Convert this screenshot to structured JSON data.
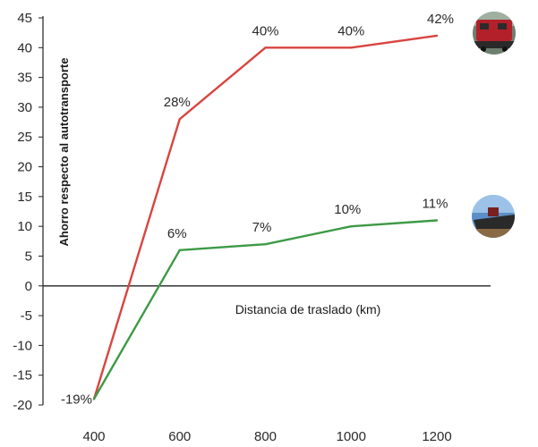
{
  "chart_data": {
    "type": "line",
    "title": "",
    "xlabel": "Distancia de traslado (km)",
    "ylabel": "Ahorro respecto al autotransporte",
    "x": [
      400,
      600,
      800,
      1000,
      1200
    ],
    "xlim": [
      400,
      1200
    ],
    "ylim": [
      -20,
      45
    ],
    "yticks": [
      45,
      40,
      35,
      30,
      25,
      20,
      15,
      10,
      5,
      0,
      -5,
      -10,
      -15,
      -20
    ],
    "xticks": [
      400,
      600,
      800,
      1000,
      1200
    ],
    "grid": false,
    "series": [
      {
        "color": "#d9453f",
        "icon": "train-icon",
        "values": [
          -19,
          28,
          40,
          40,
          42
        ],
        "labels": [
          "-19%",
          "28%",
          "40%",
          "40%",
          "42%"
        ]
      },
      {
        "color": "#3d9a46",
        "icon": "ship-icon",
        "values": [
          -19,
          6,
          7,
          10,
          11
        ],
        "labels": [
          "",
          "6%",
          "7%",
          "10%",
          "11%"
        ]
      }
    ]
  }
}
